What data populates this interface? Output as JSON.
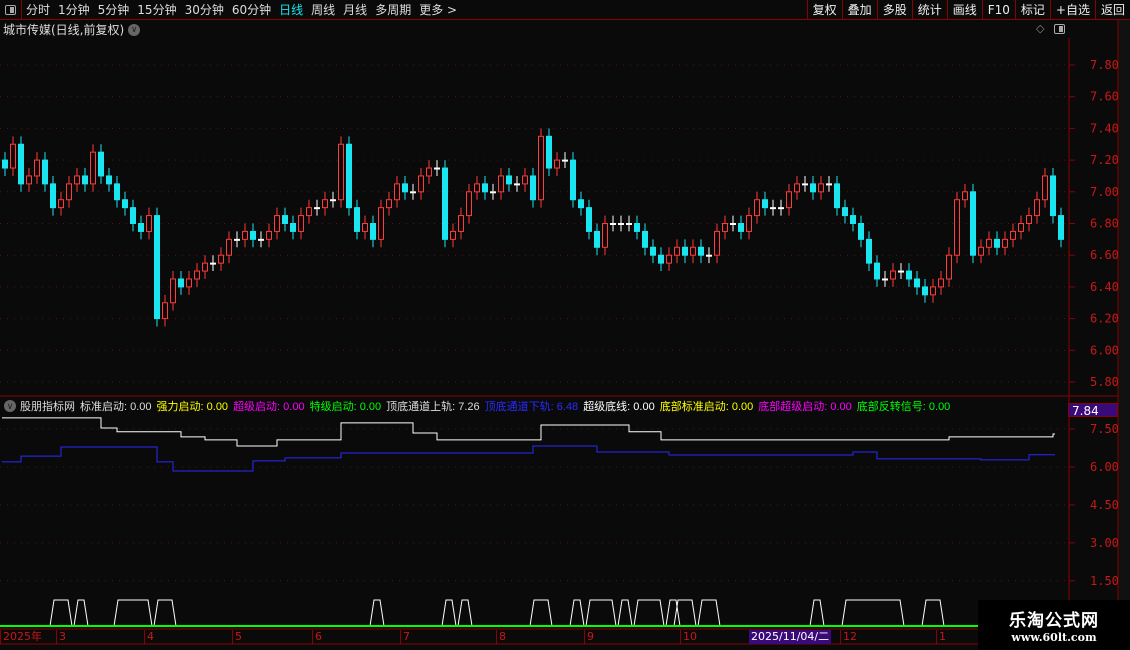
{
  "toolbar": {
    "periods": [
      "分时",
      "1分钟",
      "5分钟",
      "15分钟",
      "30分钟",
      "60分钟",
      "日线",
      "周线",
      "月线",
      "多周期",
      "更多 >"
    ],
    "active_period": "日线",
    "right_tools": [
      "复权",
      "叠加",
      "多股",
      "统计",
      "画线",
      "F10",
      "标记",
      "+自选",
      "返回"
    ]
  },
  "title": {
    "stock": "城市传媒(日线,前复权)",
    "menu_icon": "chevron-down-icon"
  },
  "colors": {
    "up": "#ff3b3b",
    "down": "#19e6f0",
    "flat": "#ffffff",
    "axis": "#c81818",
    "grid": "#5a1414",
    "upper_rail": "#ffffff",
    "lower_rail": "#2a2aff",
    "baseline": "#00ff00"
  },
  "chart_data": [
    {
      "type": "candlestick",
      "title": "城市传媒(日线,前复权)",
      "ylim": [
        5.75,
        7.95
      ],
      "yticks": [
        "7.80",
        "7.60",
        "7.40",
        "7.20",
        "7.00",
        "6.80",
        "6.60",
        "6.40",
        "6.20",
        "6.00",
        "5.80"
      ],
      "close": [
        7.15,
        7.3,
        7.05,
        7.1,
        7.2,
        7.05,
        6.9,
        6.95,
        7.05,
        7.1,
        7.05,
        7.25,
        7.1,
        7.05,
        6.95,
        6.9,
        6.8,
        6.75,
        6.85,
        6.2,
        6.3,
        6.45,
        6.4,
        6.45,
        6.5,
        6.55,
        6.55,
        6.6,
        6.7,
        6.7,
        6.75,
        6.7,
        6.7,
        6.75,
        6.85,
        6.8,
        6.75,
        6.85,
        6.9,
        6.9,
        6.95,
        6.95,
        7.3,
        6.9,
        6.75,
        6.8,
        6.7,
        6.9,
        6.95,
        7.05,
        7.0,
        7.0,
        7.1,
        7.15,
        7.15,
        6.7,
        6.75,
        6.85,
        7.0,
        7.05,
        7.0,
        7.0,
        7.1,
        7.05,
        7.05,
        7.1,
        6.95,
        7.35,
        7.15,
        7.2,
        7.2,
        6.95,
        6.9,
        6.75,
        6.65,
        6.8,
        6.8,
        6.8,
        6.8,
        6.75,
        6.65,
        6.6,
        6.55,
        6.6,
        6.65,
        6.6,
        6.65,
        6.6,
        6.6,
        6.75,
        6.8,
        6.8,
        6.75,
        6.85,
        6.95,
        6.9,
        6.9,
        6.9,
        7.0,
        7.05,
        7.05,
        7.0,
        7.05,
        7.05,
        6.9,
        6.85,
        6.8,
        6.7,
        6.55,
        6.45,
        6.45,
        6.5,
        6.5,
        6.45,
        6.4,
        6.35,
        6.4,
        6.45,
        6.6,
        6.95,
        7.0,
        6.6,
        6.65,
        6.7,
        6.65,
        6.7,
        6.75,
        6.8,
        6.85,
        6.95,
        7.1,
        6.85,
        6.7
      ]
    },
    {
      "type": "indicator",
      "name": "股朋指标网",
      "ylim": [
        0,
        8
      ],
      "yticks": [
        "7.50",
        "6.00",
        "4.50",
        "3.00",
        "1.50"
      ],
      "current_value": "7.84",
      "legend": [
        {
          "label": "标准启动: 0.00",
          "color": "#dddddd"
        },
        {
          "label": "强力启动: 0.00",
          "color": "#ffff00"
        },
        {
          "label": "超级启动: 0.00",
          "color": "#ff00ff"
        },
        {
          "label": "特级启动: 0.00",
          "color": "#00ff00"
        },
        {
          "label": "顶底通道上轨: 7.26",
          "color": "#dddddd"
        },
        {
          "label": "顶底通道下轨: 6.48",
          "color": "#2a2aff"
        },
        {
          "label": "超级底线: 0.00",
          "color": "#ffffff"
        },
        {
          "label": "底部标准启动: 0.00",
          "color": "#ffff00"
        },
        {
          "label": "底部超级启动: 0.00",
          "color": "#ff00ff"
        },
        {
          "label": "底部反转信号: 0.00",
          "color": "#00ff00"
        }
      ],
      "upper_rail_steps": [
        [
          0,
          7.94
        ],
        [
          12,
          7.54
        ],
        [
          14,
          7.39
        ],
        [
          22,
          7.19
        ],
        [
          25,
          7.07
        ],
        [
          29,
          6.83
        ],
        [
          34,
          7.07
        ],
        [
          42,
          7.74
        ],
        [
          51,
          7.34
        ],
        [
          54,
          7.07
        ],
        [
          67,
          7.66
        ],
        [
          78,
          7.39
        ],
        [
          82,
          7.07
        ],
        [
          118,
          7.19
        ],
        [
          131,
          7.3
        ]
      ],
      "lower_rail_steps": [
        [
          0,
          6.2
        ],
        [
          2,
          6.43
        ],
        [
          7,
          6.79
        ],
        [
          19,
          6.2
        ],
        [
          21,
          5.84
        ],
        [
          31,
          6.24
        ],
        [
          35,
          6.36
        ],
        [
          42,
          6.55
        ],
        [
          66,
          6.83
        ],
        [
          74,
          6.59
        ],
        [
          83,
          6.47
        ],
        [
          106,
          6.59
        ],
        [
          109,
          6.32
        ],
        [
          122,
          6.28
        ],
        [
          128,
          6.48
        ]
      ],
      "signals": [
        [
          6,
          8
        ],
        [
          9,
          10
        ],
        [
          14,
          18
        ],
        [
          19,
          21
        ],
        [
          46,
          47
        ],
        [
          55,
          56
        ],
        [
          57,
          58
        ],
        [
          66,
          68
        ],
        [
          71,
          72
        ],
        [
          73,
          76
        ],
        [
          77,
          78
        ],
        [
          79,
          82
        ],
        [
          83,
          84
        ],
        [
          84,
          86
        ],
        [
          87,
          89
        ],
        [
          101,
          102
        ],
        [
          105,
          112
        ],
        [
          115,
          117
        ]
      ],
      "time_labels": [
        {
          "bar": 0,
          "text": "2025年"
        },
        {
          "bar": 7,
          "text": "3"
        },
        {
          "bar": 18,
          "text": "4"
        },
        {
          "bar": 29,
          "text": "5"
        },
        {
          "bar": 39,
          "text": "6"
        },
        {
          "bar": 50,
          "text": "7"
        },
        {
          "bar": 62,
          "text": "8"
        },
        {
          "bar": 73,
          "text": "9"
        },
        {
          "bar": 85,
          "text": "10"
        },
        {
          "bar": 105,
          "text": "12"
        },
        {
          "bar": 117,
          "text": "1"
        }
      ],
      "cursor_date": "2025/11/04/二"
    }
  ],
  "watermark": {
    "name": "乐淘公式网",
    "url": "www.60lt.com"
  }
}
